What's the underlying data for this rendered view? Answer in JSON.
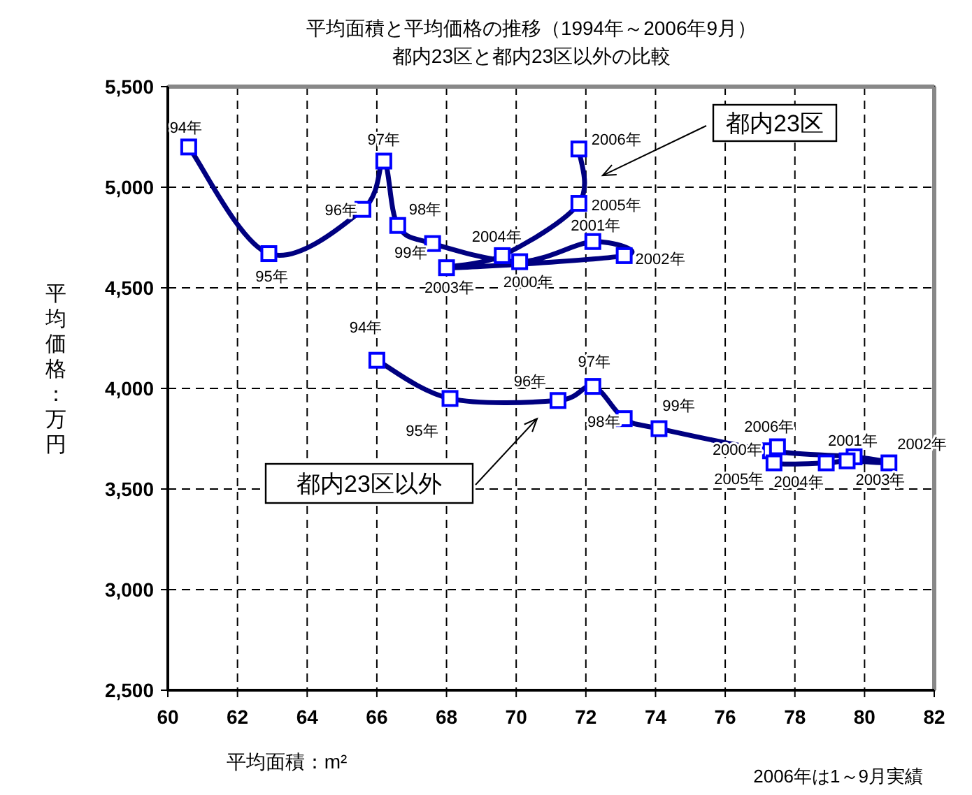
{
  "chart_data": {
    "type": "line",
    "title": "平均面積と平均価格の推移（1994年～2006年9月）",
    "subtitle": "都内23区と都内23区以外の比較",
    "xlabel": "平均面積：m²",
    "ylabel": "平均価格：万円",
    "xlim": [
      60,
      82
    ],
    "xticks": [
      60,
      62,
      64,
      66,
      68,
      70,
      72,
      74,
      76,
      78,
      80,
      82
    ],
    "ylim": [
      2500,
      5500
    ],
    "yticks": [
      {
        "value": 2500,
        "label": "2,500"
      },
      {
        "value": 3000,
        "label": "3,000"
      },
      {
        "value": 3500,
        "label": "3,500"
      },
      {
        "value": 4000,
        "label": "4,000"
      },
      {
        "value": 4500,
        "label": "4,500"
      },
      {
        "value": 5000,
        "label": "5,000"
      },
      {
        "value": 5500,
        "label": "5,500"
      }
    ],
    "grid": true,
    "legend": false,
    "marker": "square",
    "line_style": "solid",
    "series": [
      {
        "name": "都内23区",
        "color": "#000080",
        "x": [
          60.6,
          62.9,
          65.6,
          66.2,
          66.6,
          67.6,
          70.1,
          72.2,
          73.1,
          68.0,
          69.6,
          71.8,
          71.8
        ],
        "values": [
          5200,
          4670,
          4890,
          5130,
          4810,
          4720,
          4630,
          4730,
          4660,
          4600,
          4660,
          4920,
          5190
        ]
      },
      {
        "name": "都内23区以外",
        "color": "#000080",
        "x": [
          66.0,
          68.1,
          71.2,
          72.2,
          73.1,
          74.1,
          77.3,
          79.7,
          80.7,
          79.5,
          78.9,
          77.4,
          77.5
        ],
        "values": [
          4140,
          3950,
          3940,
          4010,
          3850,
          3800,
          3690,
          3660,
          3630,
          3640,
          3630,
          3630,
          3710
        ]
      }
    ],
    "annotations": [
      {
        "text": "94年",
        "x": 60.6,
        "y": 5200
      },
      {
        "text": "95年",
        "x": 62.9,
        "y": 4670
      },
      {
        "text": "96年",
        "x": 65.6,
        "y": 4890
      },
      {
        "text": "97年",
        "x": 66.2,
        "y": 5130
      },
      {
        "text": "98年",
        "x": 66.6,
        "y": 4810
      },
      {
        "text": "99年",
        "x": 67.6,
        "y": 4720
      },
      {
        "text": "2000年",
        "x": 70.1,
        "y": 4630
      },
      {
        "text": "2001年",
        "x": 72.2,
        "y": 4730
      },
      {
        "text": "2002年",
        "x": 73.1,
        "y": 4660
      },
      {
        "text": "2003年",
        "x": 68.0,
        "y": 4600
      },
      {
        "text": "2004年",
        "x": 69.6,
        "y": 4660
      },
      {
        "text": "2005年",
        "x": 71.8,
        "y": 4920
      },
      {
        "text": "2006年",
        "x": 71.8,
        "y": 5190
      },
      {
        "text": "94年",
        "x": 66.0,
        "y": 4140
      },
      {
        "text": "95年",
        "x": 68.1,
        "y": 3950
      },
      {
        "text": "96年",
        "x": 71.2,
        "y": 3940
      },
      {
        "text": "97年",
        "x": 72.2,
        "y": 4010
      },
      {
        "text": "98年",
        "x": 73.1,
        "y": 3850
      },
      {
        "text": "99年",
        "x": 74.1,
        "y": 3800
      },
      {
        "text": "2000年",
        "x": 77.3,
        "y": 3690
      },
      {
        "text": "2001年",
        "x": 79.7,
        "y": 3660
      },
      {
        "text": "2002年",
        "x": 80.7,
        "y": 3630
      },
      {
        "text": "2003年",
        "x": 79.5,
        "y": 3640
      },
      {
        "text": "2004年",
        "x": 78.9,
        "y": 3630
      },
      {
        "text": "2005年",
        "x": 77.4,
        "y": 3630
      },
      {
        "text": "2006年",
        "x": 77.5,
        "y": 3710
      },
      "2006年は1～9月実績"
    ]
  }
}
